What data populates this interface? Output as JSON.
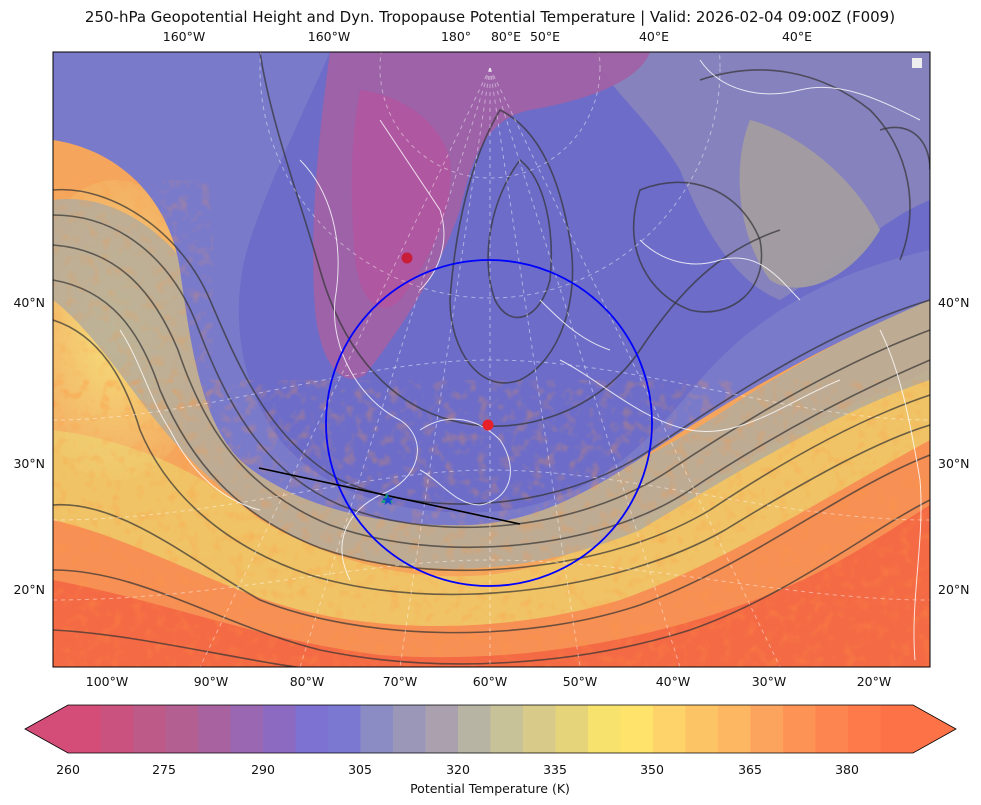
{
  "title": "250-hPa Geopotential Height and Dyn. Tropopause Potential Temperature   |  Valid: 2026-02-04 09:00Z (F009)",
  "top_labels": [
    "160°W",
    "160°W",
    "180°",
    "80°E",
    "50°E",
    "40°E",
    "40°E"
  ],
  "left_labels": [
    "40°N",
    "30°N",
    "20°N"
  ],
  "right_labels": [
    "40°N",
    "30°N",
    "20°N"
  ],
  "bottom_labels": [
    "100°W",
    "90°W",
    "80°W",
    "70°W",
    "60°W",
    "50°W",
    "40°W",
    "30°W",
    "20°W"
  ],
  "colorbar": {
    "label": "Potential Temperature (K)",
    "ticks": [
      "260",
      "275",
      "290",
      "305",
      "320",
      "335",
      "350",
      "365",
      "380"
    ],
    "colors": [
      "#d44d78",
      "#c9537e",
      "#bd5a88",
      "#b35f91",
      "#a862a0",
      "#9a67b2",
      "#8c6ac1",
      "#7d71d1",
      "#7b78d2",
      "#8b8cc4",
      "#9b97b9",
      "#aaa0ae",
      "#b8b4a4",
      "#c8c298",
      "#d8ca89",
      "#e6d47a",
      "#f6e26c",
      "#ffe36a",
      "#fdd36a",
      "#fdc466",
      "#fdb662",
      "#fca45d",
      "#fd9355",
      "#fd8550",
      "#fe7a4a",
      "#fe7248"
    ]
  },
  "markers": {
    "red_dots": 2,
    "circle_color": "#0000ff",
    "star_color": "#1a3fd8",
    "triangle_color": "#1a9e77"
  }
}
